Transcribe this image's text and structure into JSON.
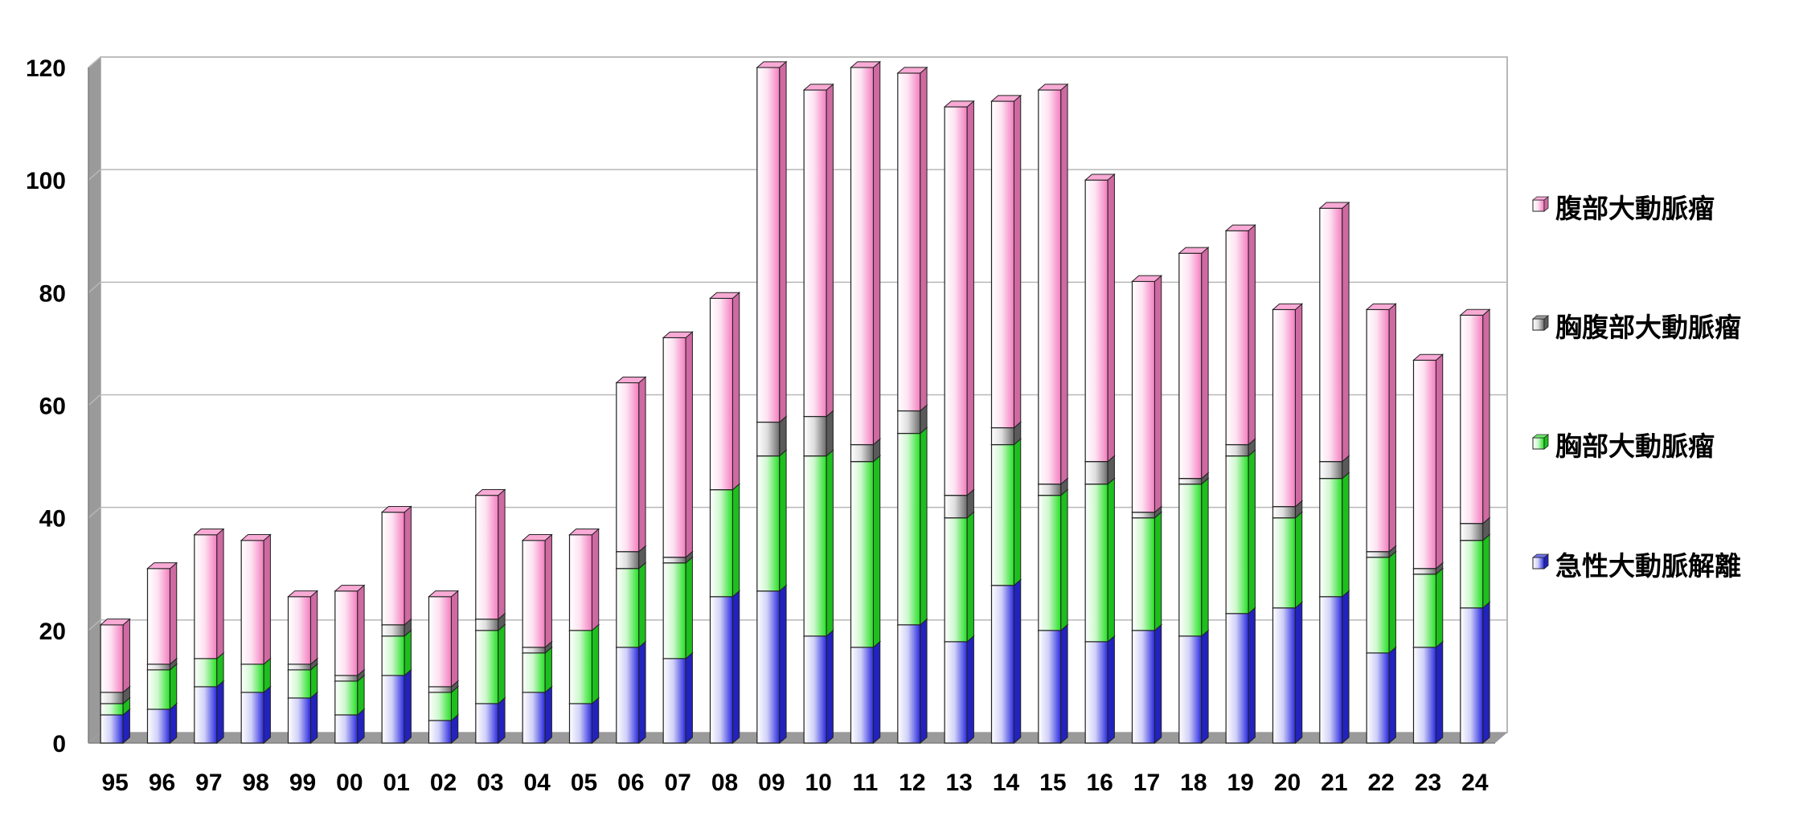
{
  "chart_data": {
    "type": "bar",
    "stacked": true,
    "style": "3d-column",
    "categories": [
      "95",
      "96",
      "97",
      "98",
      "99",
      "00",
      "01",
      "02",
      "03",
      "04",
      "05",
      "06",
      "07",
      "08",
      "09",
      "10",
      "11",
      "12",
      "13",
      "14",
      "15",
      "16",
      "17",
      "18",
      "19",
      "20",
      "21",
      "22",
      "23",
      "24"
    ],
    "series": [
      {
        "name": "急性大動脈解離",
        "color": "#2828e0",
        "values": [
          5,
          6,
          10,
          9,
          8,
          5,
          12,
          4,
          7,
          9,
          7,
          17,
          15,
          26,
          27,
          19,
          17,
          21,
          18,
          28,
          20,
          18,
          20,
          19,
          23,
          24,
          26,
          16,
          17,
          24
        ]
      },
      {
        "name": "胸部大動脈瘤",
        "color": "#22e022",
        "values": [
          2,
          7,
          5,
          5,
          5,
          6,
          7,
          5,
          13,
          7,
          13,
          14,
          17,
          19,
          24,
          32,
          33,
          34,
          22,
          25,
          24,
          28,
          20,
          27,
          28,
          16,
          21,
          17,
          13,
          12
        ]
      },
      {
        "name": "胸腹部大動脈瘤",
        "color": "#6a6a6a",
        "values": [
          2,
          1,
          0,
          0,
          1,
          1,
          2,
          1,
          2,
          1,
          0,
          3,
          1,
          0,
          6,
          7,
          3,
          4,
          4,
          3,
          2,
          4,
          1,
          1,
          2,
          2,
          3,
          1,
          1,
          3
        ]
      },
      {
        "name": "腹部大動脈瘤",
        "color": "#f47cbf",
        "values": [
          12,
          17,
          22,
          22,
          12,
          15,
          20,
          16,
          22,
          19,
          17,
          30,
          39,
          34,
          63,
          58,
          67,
          60,
          69,
          58,
          70,
          50,
          41,
          40,
          38,
          35,
          45,
          43,
          37,
          37
        ]
      }
    ],
    "ylim": [
      0,
      120
    ],
    "yticks": [
      0,
      20,
      40,
      60,
      80,
      100,
      120
    ],
    "grid": true,
    "legend": "right"
  }
}
